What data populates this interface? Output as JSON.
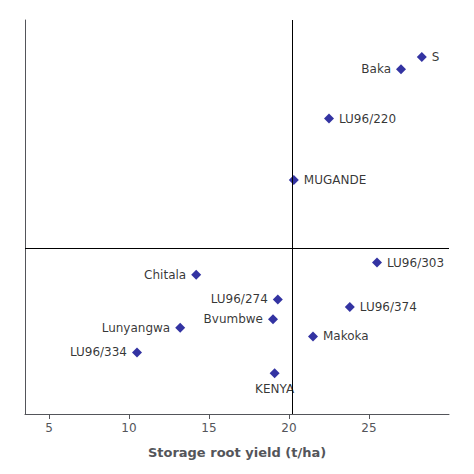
{
  "chart_data": {
    "type": "scatter",
    "xlabel": "Storage root yield (t/ha)",
    "x": [
      27.0,
      28.3,
      22.5,
      20.3,
      25.5,
      14.2,
      19.3,
      23.8,
      19.0,
      13.2,
      21.5,
      10.5,
      19.1
    ],
    "values": [
      1.45,
      1.55,
      1.05,
      0.55,
      -0.12,
      -0.22,
      -0.42,
      -0.48,
      -0.58,
      -0.65,
      -0.72,
      -0.85,
      -1.02
    ],
    "labels": [
      "Baka",
      "S",
      "LU96/220",
      "MUGANDE",
      "LU96/303",
      "Chitala",
      "LU96/274",
      "LU96/374",
      "Bvumbwe",
      "Lunyangwa",
      "Makoka",
      "LU96/334",
      "KENYA"
    ],
    "color": "#00008B",
    "marker": "diamond",
    "xlim": [
      3.5,
      30.0
    ],
    "xticks": [
      5,
      10,
      15,
      20,
      25
    ],
    "ylim": [
      -1.35,
      1.85
    ],
    "vline_x": 20.2,
    "hline_y": 0.0,
    "tick_labels": "x",
    "grid": false
  }
}
